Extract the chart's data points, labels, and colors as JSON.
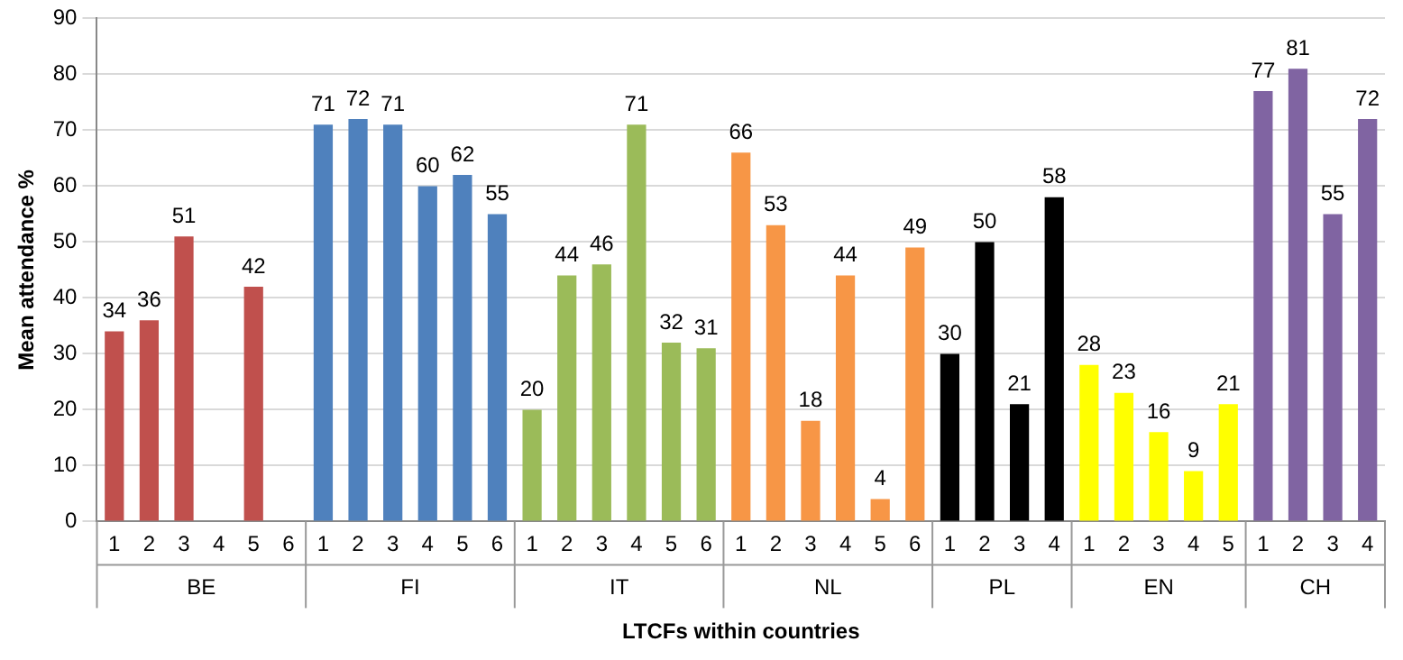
{
  "chart_data": {
    "type": "bar",
    "xlabel": "LTCFs within countries",
    "ylabel": "Mean attendance %",
    "categories": [
      "1",
      "2",
      "3",
      "4",
      "5",
      "6",
      "1",
      "2",
      "3",
      "4",
      "5",
      "6",
      "1",
      "2",
      "3",
      "4",
      "5",
      "6",
      "1",
      "2",
      "3",
      "4",
      "5",
      "6",
      "1",
      "2",
      "3",
      "4",
      "1",
      "2",
      "3",
      "4",
      "5",
      "1",
      "2",
      "3",
      "4"
    ],
    "series": [
      {
        "name": "BE",
        "color": "#c0504d",
        "values": [
          34,
          36,
          51,
          null,
          42,
          null,
          null,
          null,
          null,
          null,
          null,
          null,
          null,
          null,
          null,
          null,
          null,
          null,
          null,
          null,
          null,
          null,
          null,
          null,
          null,
          null,
          null,
          null,
          null,
          null,
          null,
          null,
          null,
          null,
          null,
          null,
          null
        ]
      },
      {
        "name": "FI",
        "color": "#4f81bd",
        "values": [
          null,
          null,
          null,
          null,
          null,
          null,
          71,
          72,
          71,
          60,
          62,
          55,
          null,
          null,
          null,
          null,
          null,
          null,
          null,
          null,
          null,
          null,
          null,
          null,
          null,
          null,
          null,
          null,
          null,
          null,
          null,
          null,
          null,
          null,
          null,
          null,
          null
        ]
      },
      {
        "name": "IT",
        "color": "#9bbb59",
        "values": [
          null,
          null,
          null,
          null,
          null,
          null,
          null,
          null,
          null,
          null,
          null,
          null,
          20,
          44,
          46,
          71,
          32,
          31,
          null,
          null,
          null,
          null,
          null,
          null,
          null,
          null,
          null,
          null,
          null,
          null,
          null,
          null,
          null,
          null,
          null,
          null,
          null
        ]
      },
      {
        "name": "NL",
        "color": "#f79646",
        "values": [
          null,
          null,
          null,
          null,
          null,
          null,
          null,
          null,
          null,
          null,
          null,
          null,
          null,
          null,
          null,
          null,
          null,
          null,
          66,
          53,
          18,
          44,
          4,
          49,
          null,
          null,
          null,
          null,
          null,
          null,
          null,
          null,
          null,
          null,
          null,
          null,
          null
        ]
      },
      {
        "name": "PL",
        "color": "#000000",
        "values": [
          null,
          null,
          null,
          null,
          null,
          null,
          null,
          null,
          null,
          null,
          null,
          null,
          null,
          null,
          null,
          null,
          null,
          null,
          null,
          null,
          null,
          null,
          null,
          null,
          30,
          50,
          21,
          58,
          null,
          null,
          null,
          null,
          null,
          null,
          null,
          null,
          null
        ]
      },
      {
        "name": "EN",
        "color": "#ffff00",
        "values": [
          null,
          null,
          null,
          null,
          null,
          null,
          null,
          null,
          null,
          null,
          null,
          null,
          null,
          null,
          null,
          null,
          null,
          null,
          null,
          null,
          null,
          null,
          null,
          null,
          null,
          null,
          null,
          null,
          28,
          23,
          16,
          9,
          21,
          null,
          null,
          null,
          null
        ]
      },
      {
        "name": "CH",
        "color": "#8064a2",
        "values": [
          null,
          null,
          null,
          null,
          null,
          null,
          null,
          null,
          null,
          null,
          null,
          null,
          null,
          null,
          null,
          null,
          null,
          null,
          null,
          null,
          null,
          null,
          null,
          null,
          null,
          null,
          null,
          null,
          null,
          null,
          null,
          null,
          null,
          77,
          81,
          55,
          72
        ]
      }
    ],
    "ylim": [
      0,
      90
    ],
    "yticks": [
      0,
      10,
      20,
      30,
      40,
      50,
      60,
      70,
      80,
      90
    ],
    "grid": "y",
    "data_labels": true,
    "legend": false
  }
}
